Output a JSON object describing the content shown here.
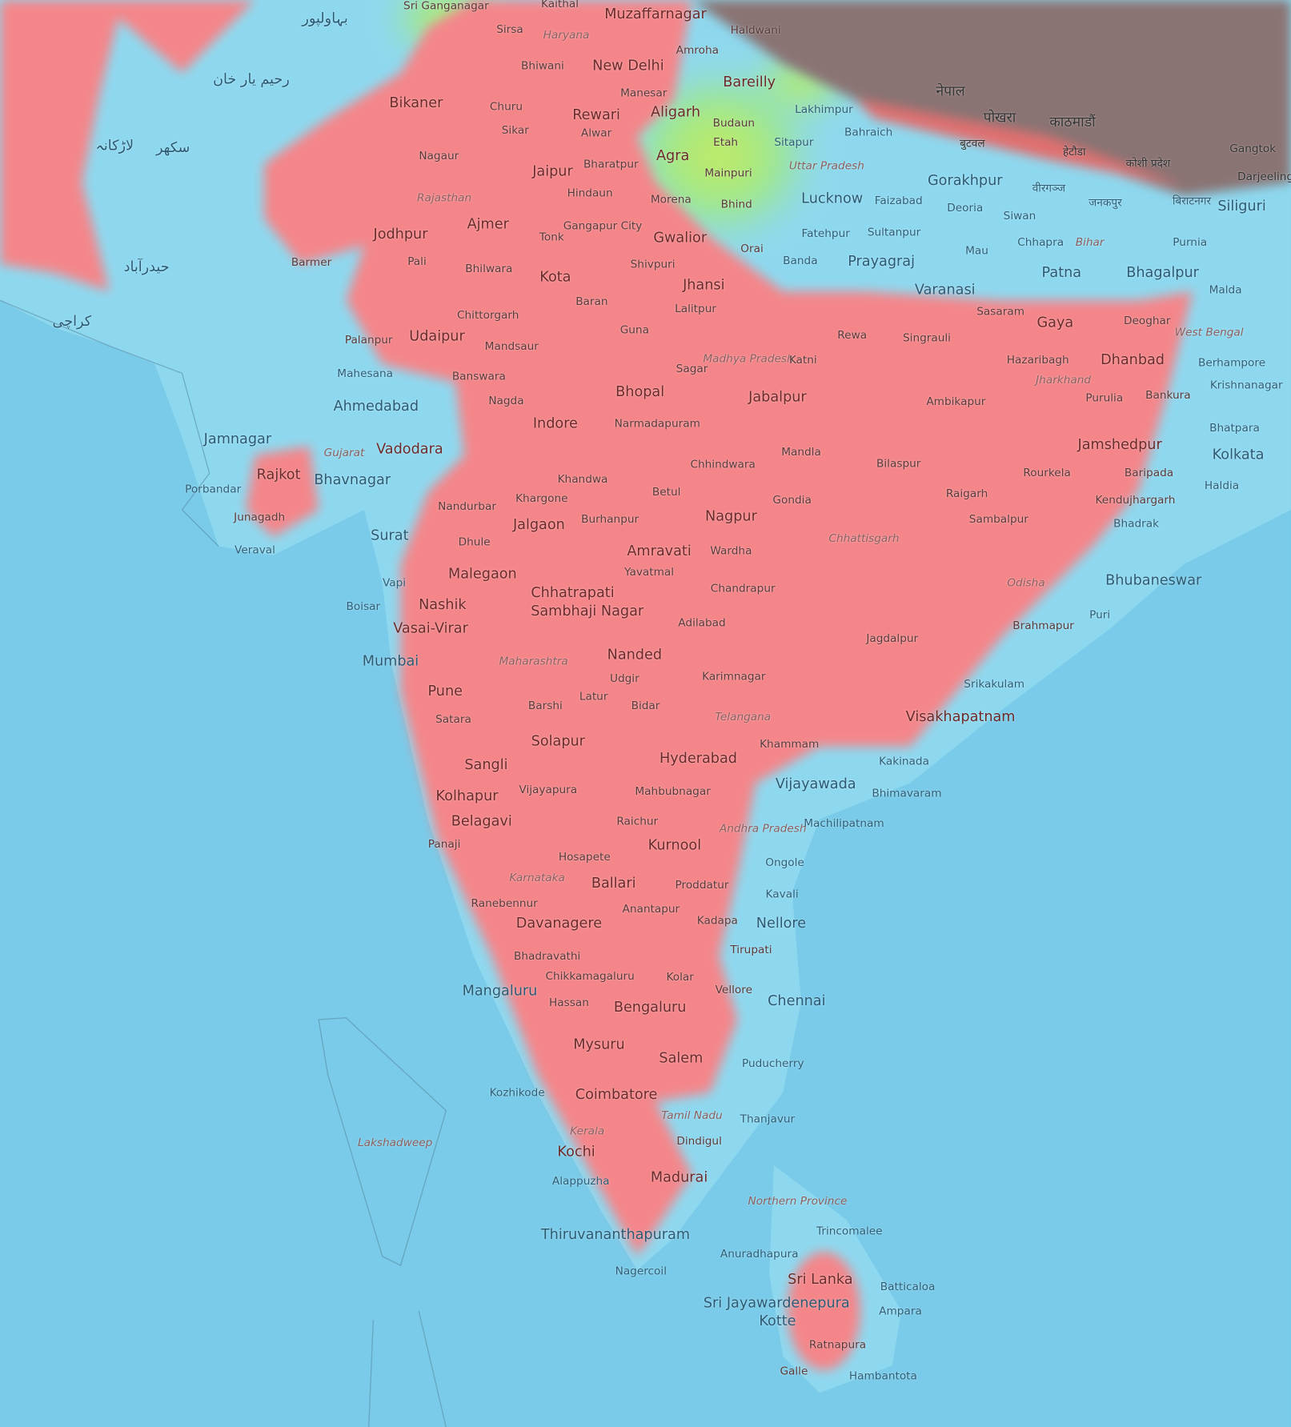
{
  "map": {
    "colors": {
      "ocean": "#79cbe9",
      "lowland": "#8ed8ef",
      "highland": "#f4868a",
      "transition": "#e6ec6a",
      "mountains": "#8a7373"
    },
    "places": [
      "Muzaffarnagar",
      "Haldwani",
      "Sirsa",
      "Sri Ganganagar",
      "Kaithal",
      "Haryana",
      "Amroha",
      "New Delhi",
      "Bhiwani",
      "Bareilly",
      "Bikaner",
      "Manesar",
      "Churu",
      "Rewari",
      "Aligarh",
      "Lakhimpur",
      "Budaun",
      "Sikar",
      "Alwar",
      "Bahraich",
      "Etah",
      "Sitapur",
      "Jaipur",
      "Bharatpur",
      "Agra",
      "Nagaur",
      "Uttar Pradesh",
      "Mainpuri",
      "Gorakhpur",
      "Hindaun",
      "Rajasthan",
      "Morena",
      "Bhind",
      "Lucknow",
      "Faizabad",
      "Deoria",
      "Siliguri",
      "Ajmer",
      "Gangapur City",
      "Jodhpur",
      "Tonk",
      "Gwalior",
      "Fatehpur",
      "Sultanpur",
      "Siwan",
      "Chhapra",
      "Bihar",
      "Purnia",
      "Orai",
      "Mau",
      "Barmer",
      "Pali",
      "Bhilwara",
      "Shivpuri",
      "Banda",
      "Prayagraj",
      "Patna",
      "Bhagalpur",
      "Kota",
      "Jhansi",
      "Varanasi",
      "Malda",
      "Baran",
      "Lalitpur",
      "Chittorgarh",
      "Sasaram",
      "Gaya",
      "Deoghar",
      "Guna",
      "Udaipur",
      "Palanpur",
      "Rewa",
      "Singrauli",
      "Mandsaur",
      "Madhya Pradesh",
      "Katni",
      "Hazaribagh",
      "Dhanbad",
      "West Bengal",
      "Berhampore",
      "Mahesana",
      "Banswara",
      "Sagar",
      "Jharkhand",
      "Bhopal",
      "Jabalpur",
      "Ambikapur",
      "Purulia",
      "Bankura",
      "Krishnanagar",
      "Nagda",
      "Ahmedabad",
      "Indore",
      "Narmadapuram",
      "Bhatpara",
      "Jamnagar",
      "Jamshedpur",
      "Kolkata",
      "Mandla",
      "Gujarat",
      "Vadodara",
      "Chhindwara",
      "Bilaspur",
      "Rourkela",
      "Baripada",
      "Rajkot",
      "Bhavnagar",
      "Khandwa",
      "Haldia",
      "Porbandar",
      "Betul",
      "Raigarh",
      "Nandurbar",
      "Khargone",
      "Gondia",
      "Kendujhargarh",
      "Junagadh",
      "Jalgaon",
      "Burhanpur",
      "Nagpur",
      "Sambalpur",
      "Bhadrak",
      "Surat",
      "Chhattisgarh",
      "Dhule",
      "Veraval",
      "Amravati",
      "Wardha",
      "Malegaon",
      "Yavatmal",
      "Bhubaneswar",
      "Vapi",
      "Chandrapur",
      "Odisha",
      "Chhatrapati",
      "Sambhaji Nagar",
      "Nashik",
      "Boisar",
      "Adilabad",
      "Brahmapur",
      "Puri",
      "Vasai-Virar",
      "Jagdalpur",
      "Nanded",
      "Mumbai",
      "Maharashtra",
      "Karimnagar",
      "Udgir",
      "Srikakulam",
      "Pune",
      "Latur",
      "Bidar",
      "Barshi",
      "Visakhapatnam",
      "Telangana",
      "Satara",
      "Solapur",
      "Khammam",
      "Hyderabad",
      "Kakinada",
      "Sangli",
      "Vijayawada",
      "Vijayapura",
      "Mahbubnagar",
      "Bhimavaram",
      "Kolhapur",
      "Belagavi",
      "Raichur",
      "Andhra Pradesh",
      "Machilipatnam",
      "Panaji",
      "Kurnool",
      "Hosapete",
      "Ongole",
      "Karnataka",
      "Ballari",
      "Proddatur",
      "Kavali",
      "Ranebennur",
      "Anantapur",
      "Davanagere",
      "Kadapa",
      "Nellore",
      "Tirupati",
      "Bhadravathi",
      "Chikkamagaluru",
      "Kolar",
      "Mangaluru",
      "Vellore",
      "Chennai",
      "Hassan",
      "Bengaluru",
      "Mysuru",
      "Salem",
      "Puducherry",
      "Kozhikode",
      "Coimbatore",
      "Tamil Nadu",
      "Thanjavur",
      "Kerala",
      "Dindigul",
      "Lakshadweep",
      "Kochi",
      "Madurai",
      "Alappuzha",
      "Northern Province",
      "Trincomalee",
      "Thiruvananthapuram",
      "Anuradhapura",
      "Nagercoil",
      "Sri Lanka",
      "Batticaloa",
      "Sri Jayawardenepura",
      "Kotte",
      "Ampara",
      "Ratnapura",
      "Galle",
      "Hambantota",
      "नेपाल",
      "काठमाडौं",
      "पोखरा",
      "Gangtok",
      "Darjeeling",
      "کراچی",
      "حیدرآباد",
      "سکھر",
      "رحیم یار خان",
      "بہاولپور",
      "لاڑکانہ",
      "हेटौडा",
      "बुटवल",
      "जनकपुर",
      "बिराटनगर",
      "कोशी प्रदेश",
      "वीरगञ्ज"
    ]
  }
}
